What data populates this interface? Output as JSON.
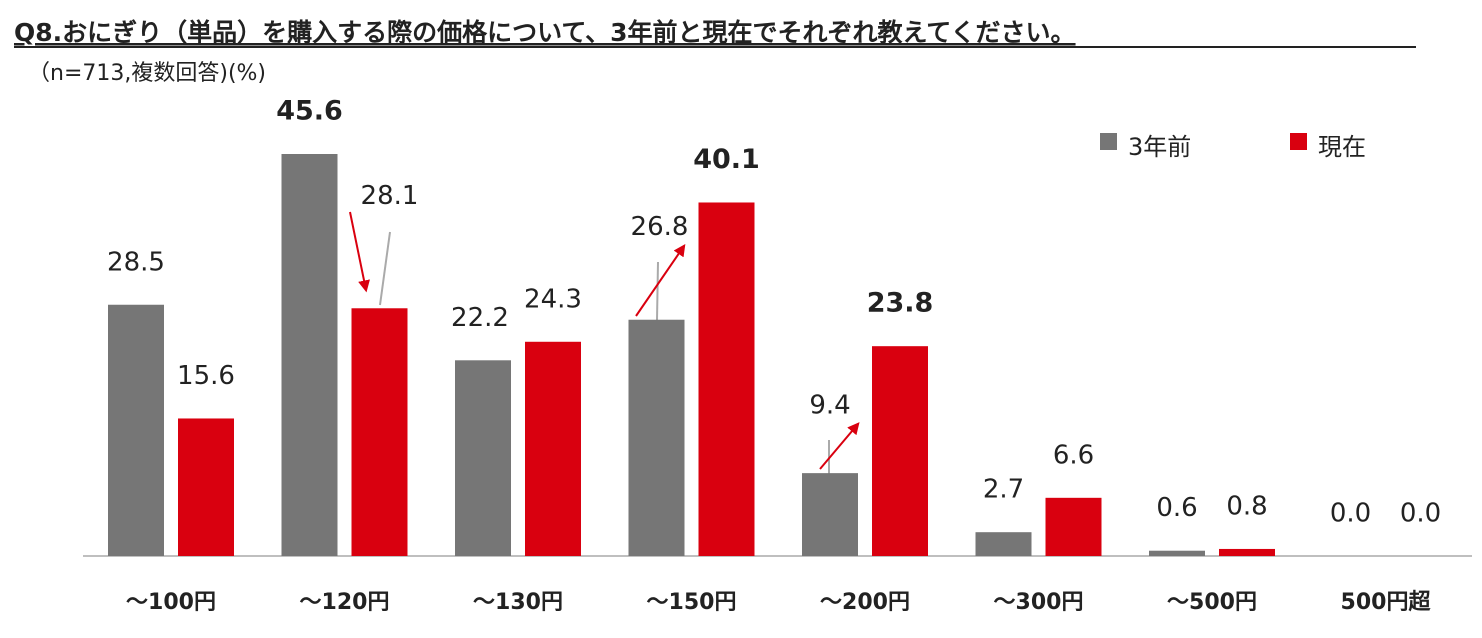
{
  "chart_data": {
    "type": "bar",
    "title": "Q8.おにぎり（単品）を購入する際の価格について、3年前と現在でそれぞれ教えてください。",
    "subtitle": "（n=713,複数回答)(%)",
    "categories": [
      "～100円",
      "～120円",
      "～130円",
      "～150円",
      "～200円",
      "～300円",
      "～500円",
      "500円超"
    ],
    "series": [
      {
        "name": "3年前",
        "color": "#767676",
        "values": [
          28.5,
          45.6,
          22.2,
          26.8,
          9.4,
          2.7,
          0.6,
          0.0
        ],
        "value_labels": [
          "28.5",
          "45.6",
          "22.2",
          "26.8",
          "9.4",
          "2.7",
          "0.6",
          "0.0"
        ],
        "bold": [
          false,
          true,
          false,
          false,
          false,
          false,
          false,
          false
        ]
      },
      {
        "name": "現在",
        "color": "#d9000f",
        "values": [
          15.6,
          28.1,
          24.3,
          40.1,
          23.8,
          6.6,
          0.8,
          0.0
        ],
        "value_labels": [
          "15.6",
          "28.1",
          "24.3",
          "40.1",
          "23.8",
          "6.6",
          "0.8",
          "0.0"
        ],
        "bold": [
          false,
          false,
          false,
          true,
          true,
          false,
          false,
          false
        ]
      }
    ],
    "legend": "top-right"
  }
}
